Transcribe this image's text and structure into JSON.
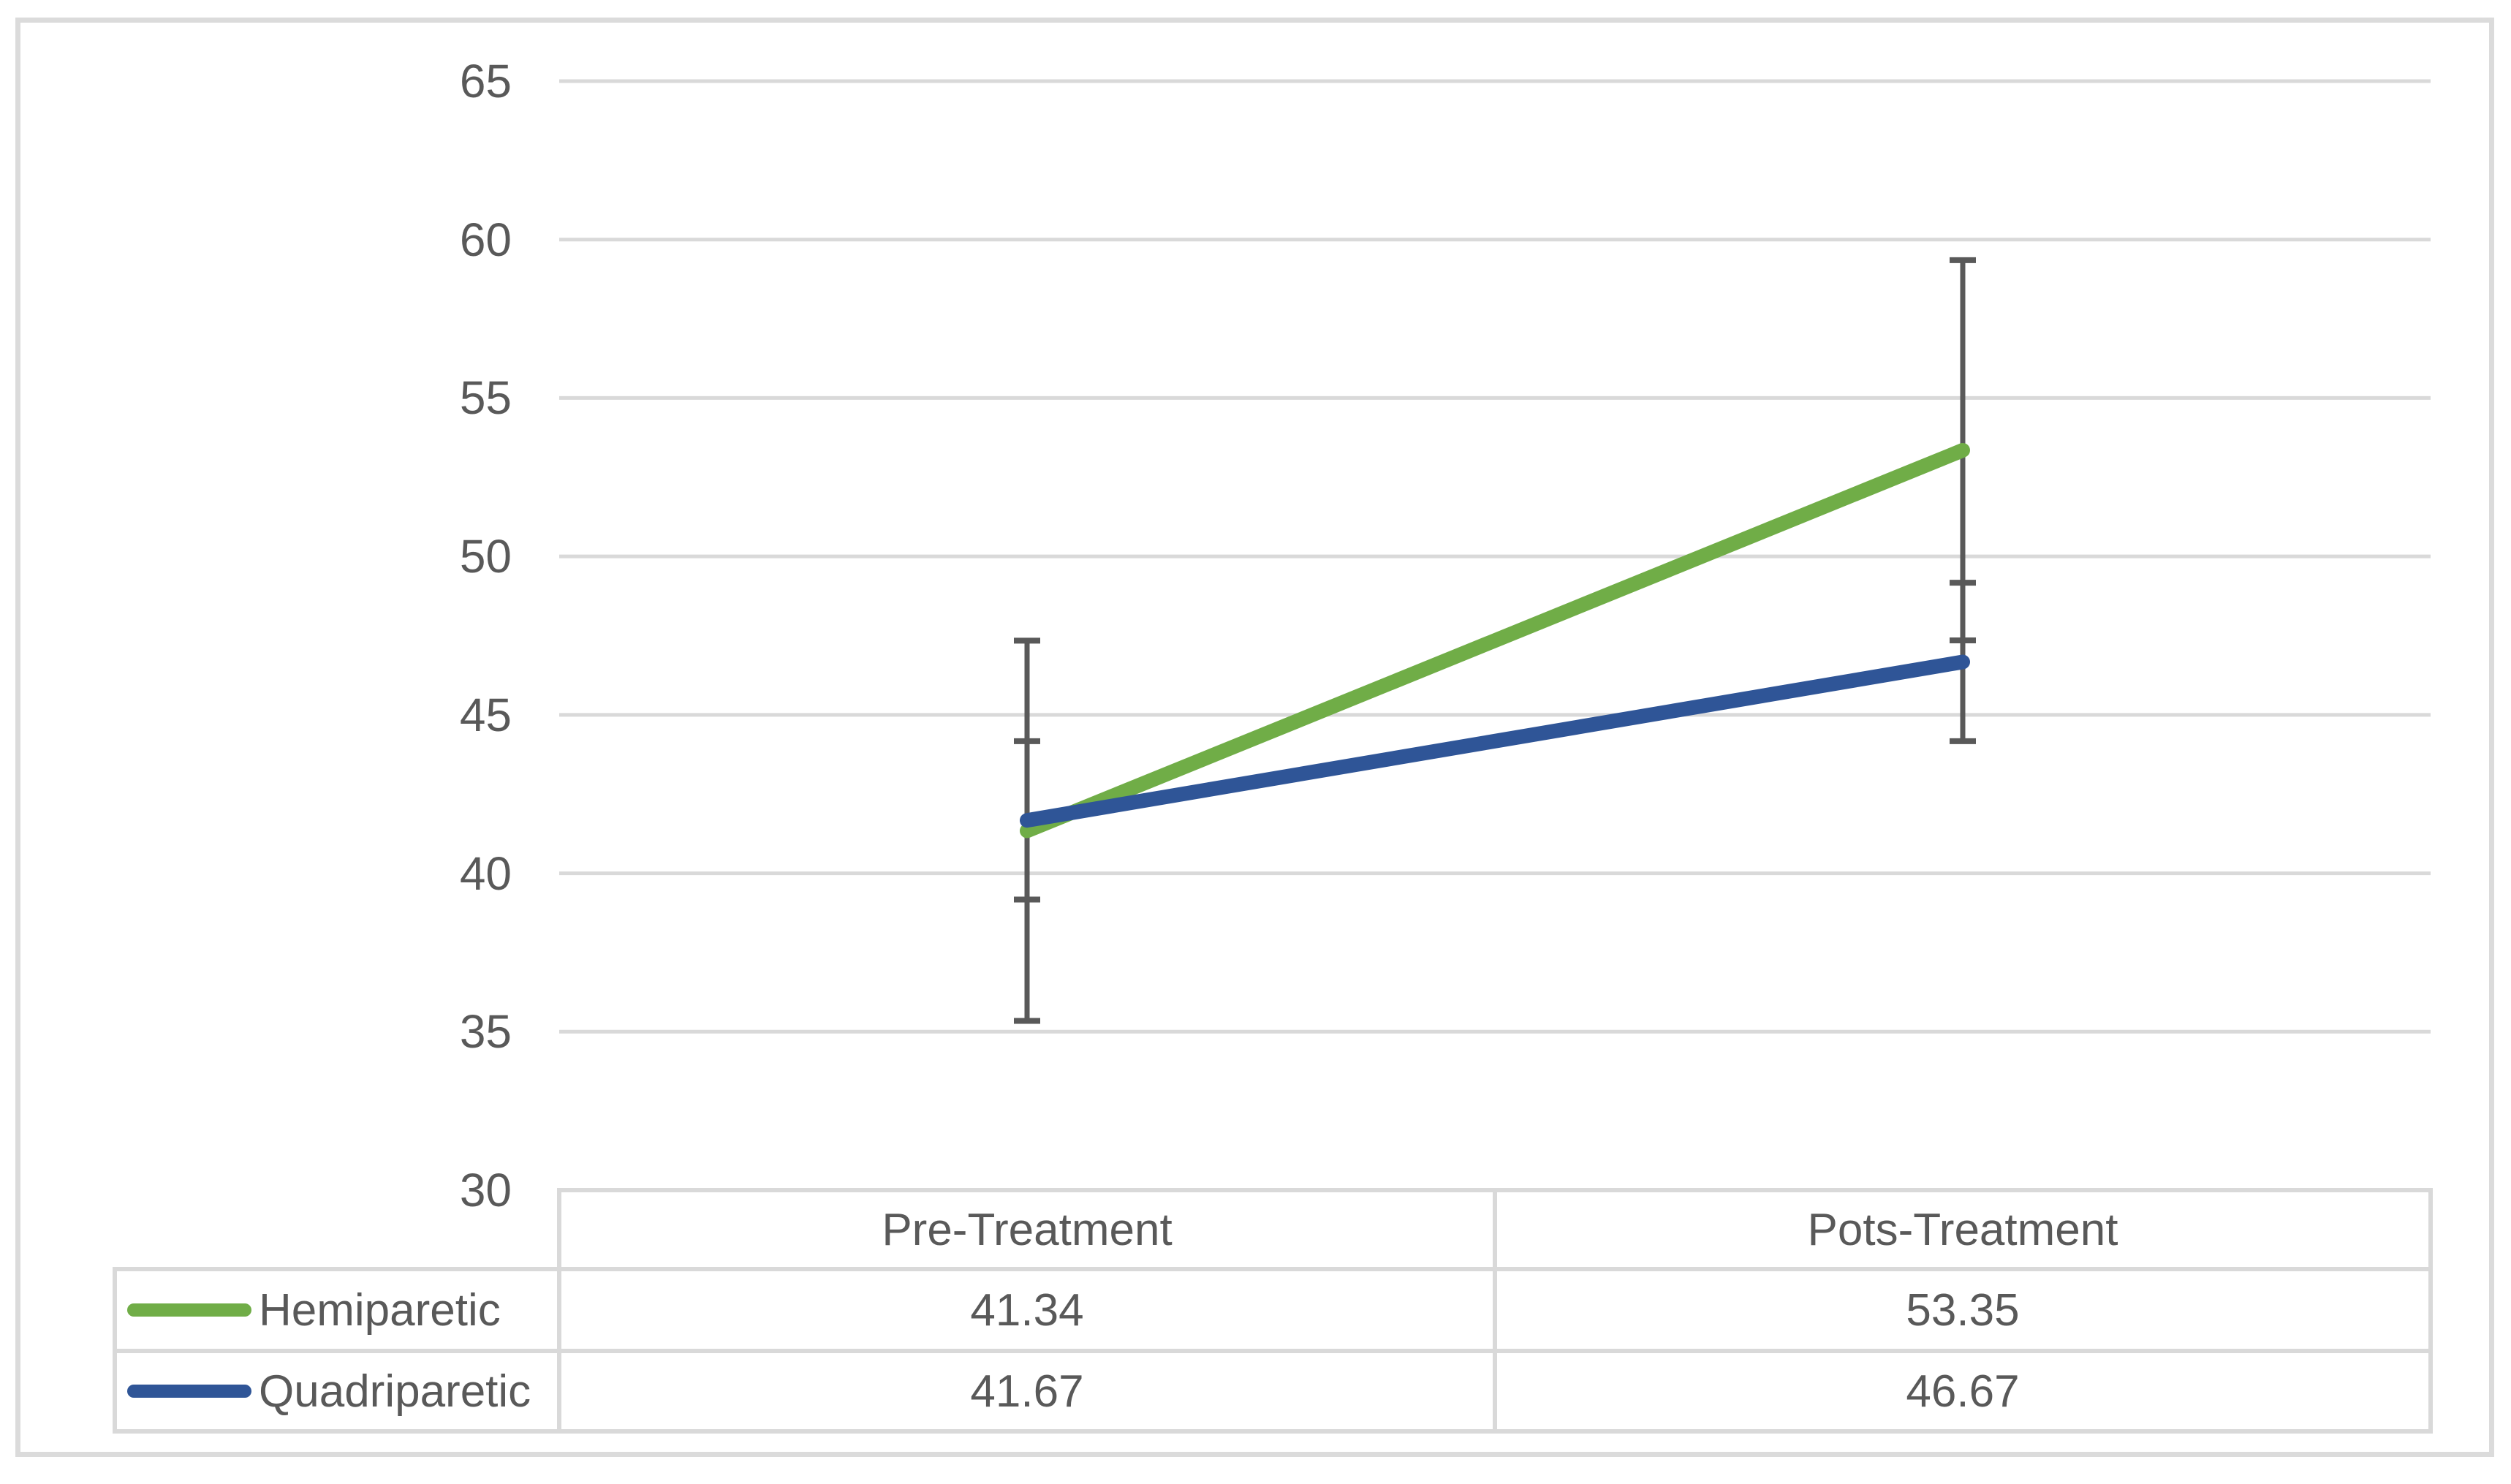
{
  "figure": {
    "background": "#FFFFFF",
    "border_color": "#DBDBDB",
    "text_color": "#595959"
  },
  "chart_data": {
    "type": "line",
    "title": "",
    "xlabel": "",
    "ylabel": "",
    "categories": [
      "Pre-Treatment",
      "Pots-Treatment"
    ],
    "series": [
      {
        "name": "Hemiparetic",
        "color": "#70AD47",
        "values": [
          41.34,
          53.35
        ],
        "error_bar": 6.0
      },
      {
        "name": "Quadriparetic",
        "color": "#2F5597",
        "values": [
          41.67,
          46.67
        ],
        "error_bar": 2.5
      }
    ],
    "ylim": [
      30,
      65
    ],
    "yticks": [
      65,
      60,
      55,
      50,
      45,
      40,
      35,
      30
    ],
    "grid": true,
    "gridline_color": "#D9D9D9",
    "error_bar_color": "#595959",
    "legend_position": "data-table-left"
  }
}
